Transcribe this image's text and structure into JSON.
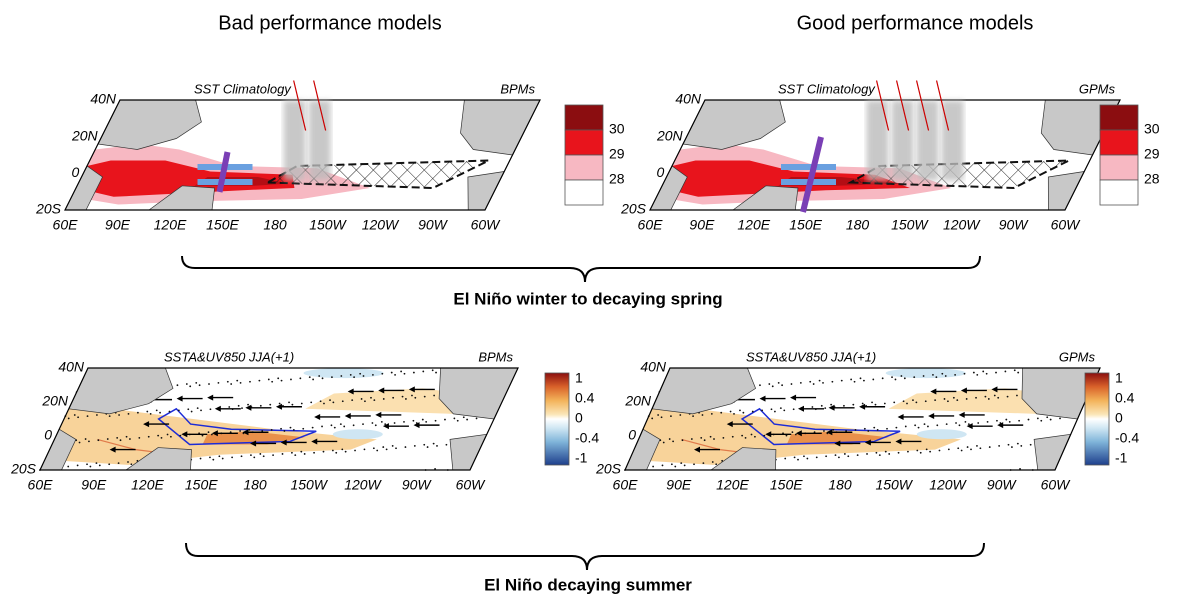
{
  "headers": [
    "Bad performance models",
    "Good performance models"
  ],
  "top_panels": [
    {
      "title": "SST Climatology",
      "tag": "BPMs",
      "lat_labels": [
        "40N",
        "20N",
        "0",
        "20S"
      ],
      "lon_labels": [
        "60E",
        "90E",
        "120E",
        "150E",
        "180",
        "150W",
        "120W",
        "90W",
        "60W"
      ],
      "colorbar_labels": [
        "30",
        "29",
        "28"
      ]
    },
    {
      "title": "SST Climatology",
      "tag": "GPMs",
      "lat_labels": [
        "40N",
        "20N",
        "0",
        "20S"
      ],
      "lon_labels": [
        "60E",
        "90E",
        "120E",
        "150E",
        "180",
        "150W",
        "120W",
        "90W",
        "60W"
      ],
      "colorbar_labels": [
        "30",
        "29",
        "28"
      ]
    }
  ],
  "top_caption": "El Niño winter to decaying spring",
  "bottom_panels": [
    {
      "title": "SSTA&UV850 JJA(+1)",
      "tag": "BPMs",
      "lat_labels": [
        "40N",
        "20N",
        "0",
        "20S"
      ],
      "lon_labels": [
        "60E",
        "90E",
        "120E",
        "150E",
        "180",
        "150W",
        "120W",
        "90W",
        "60W"
      ],
      "colorbar_labels": [
        "1",
        "0.4",
        "0",
        "-0.4",
        "-1"
      ]
    },
    {
      "title": "SSTA&UV850 JJA(+1)",
      "tag": "GPMs",
      "lat_labels": [
        "40N",
        "20N",
        "0",
        "20S"
      ],
      "lon_labels": [
        "60E",
        "90E",
        "120E",
        "150E",
        "180",
        "150W",
        "120W",
        "90W",
        "60W"
      ],
      "colorbar_labels": [
        "1",
        "0.4",
        "0",
        "-0.4",
        "-1"
      ]
    }
  ],
  "bottom_caption": "El Niño decaying summer"
}
